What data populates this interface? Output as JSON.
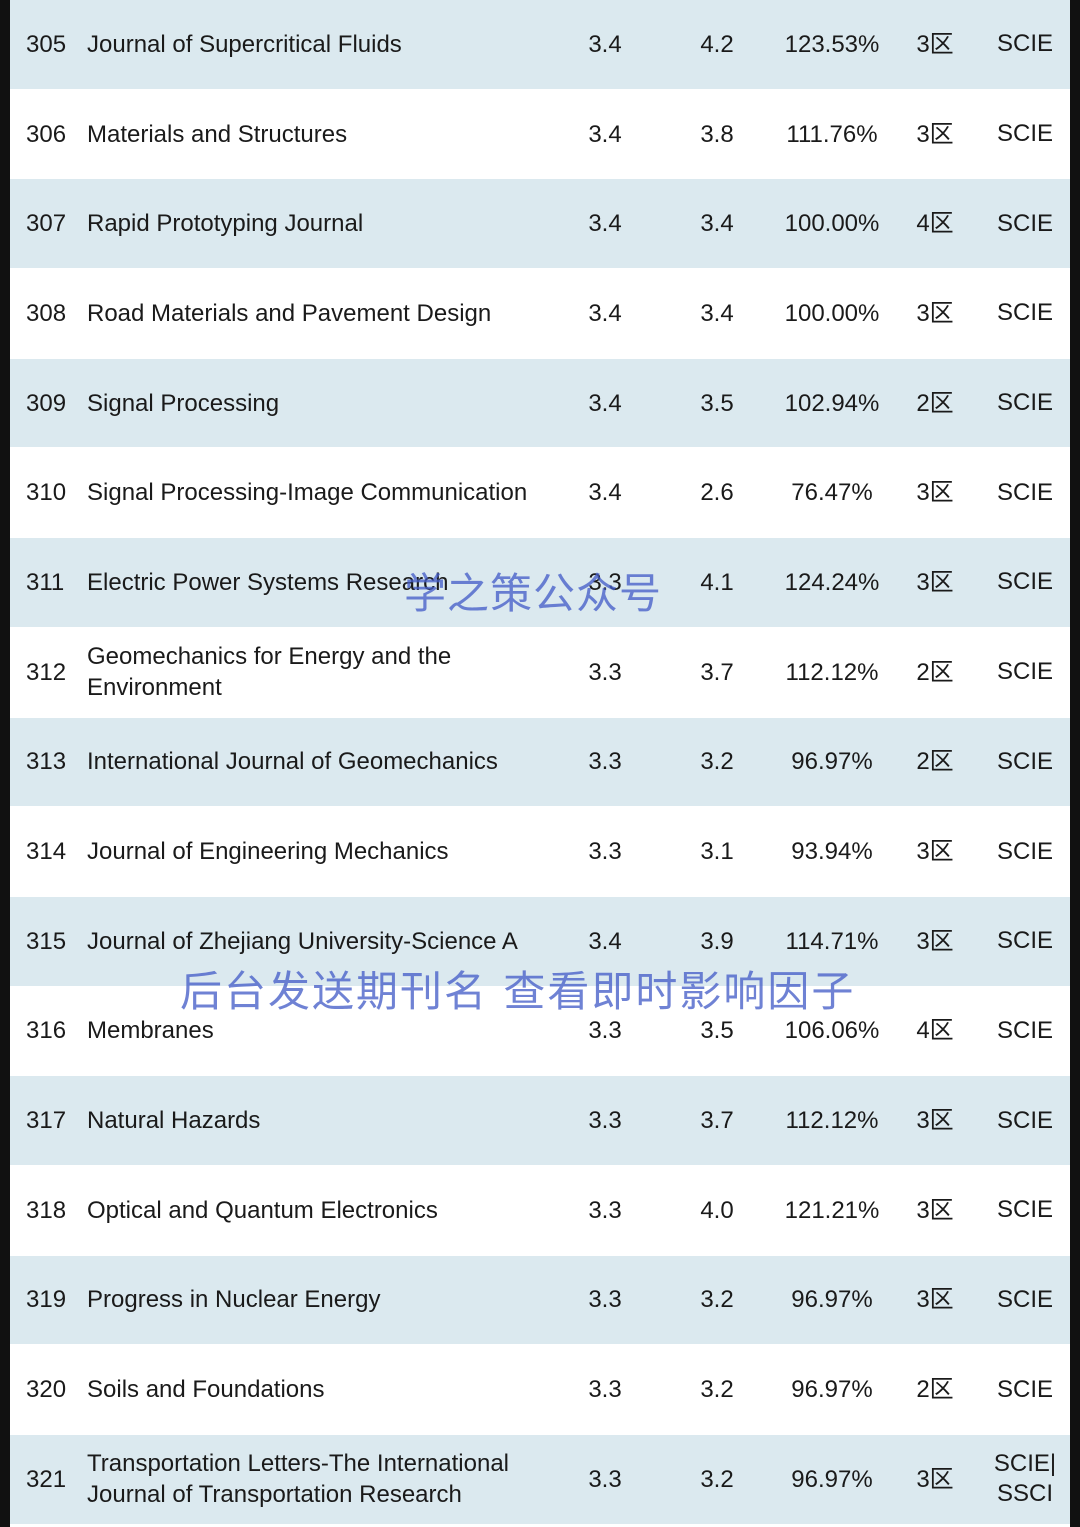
{
  "rows": [
    {
      "rank": "305",
      "name": "Journal of Supercritical Fluids",
      "if1": "3.4",
      "if2": "4.2",
      "ratio": "123.53%",
      "zone": "3区",
      "index": "SCIE"
    },
    {
      "rank": "306",
      "name": "Materials and Structures",
      "if1": "3.4",
      "if2": "3.8",
      "ratio": "111.76%",
      "zone": "3区",
      "index": "SCIE"
    },
    {
      "rank": "307",
      "name": "Rapid Prototyping Journal",
      "if1": "3.4",
      "if2": "3.4",
      "ratio": "100.00%",
      "zone": "4区",
      "index": "SCIE"
    },
    {
      "rank": "308",
      "name": "Road Materials and Pavement Design",
      "if1": "3.4",
      "if2": "3.4",
      "ratio": "100.00%",
      "zone": "3区",
      "index": "SCIE"
    },
    {
      "rank": "309",
      "name": "Signal Processing",
      "if1": "3.4",
      "if2": "3.5",
      "ratio": "102.94%",
      "zone": "2区",
      "index": "SCIE"
    },
    {
      "rank": "310",
      "name": "Signal Processing-Image Communication",
      "if1": "3.4",
      "if2": "2.6",
      "ratio": "76.47%",
      "zone": "3区",
      "index": "SCIE"
    },
    {
      "rank": "311",
      "name": "Electric Power Systems Research",
      "if1": "3.3",
      "if2": "4.1",
      "ratio": "124.24%",
      "zone": "3区",
      "index": "SCIE"
    },
    {
      "rank": "312",
      "name": "Geomechanics for Energy and the Environment",
      "if1": "3.3",
      "if2": "3.7",
      "ratio": "112.12%",
      "zone": "2区",
      "index": "SCIE"
    },
    {
      "rank": "313",
      "name": "International Journal of Geomechanics",
      "if1": "3.3",
      "if2": "3.2",
      "ratio": "96.97%",
      "zone": "2区",
      "index": "SCIE"
    },
    {
      "rank": "314",
      "name": "Journal of Engineering Mechanics",
      "if1": "3.3",
      "if2": "3.1",
      "ratio": "93.94%",
      "zone": "3区",
      "index": "SCIE"
    },
    {
      "rank": "315",
      "name": "Journal of Zhejiang University-Science A",
      "if1": "3.4",
      "if2": "3.9",
      "ratio": "114.71%",
      "zone": "3区",
      "index": "SCIE"
    },
    {
      "rank": "316",
      "name": "Membranes",
      "if1": "3.3",
      "if2": "3.5",
      "ratio": "106.06%",
      "zone": "4区",
      "index": "SCIE"
    },
    {
      "rank": "317",
      "name": "Natural Hazards",
      "if1": "3.3",
      "if2": "3.7",
      "ratio": "112.12%",
      "zone": "3区",
      "index": "SCIE"
    },
    {
      "rank": "318",
      "name": "Optical and Quantum Electronics",
      "if1": "3.3",
      "if2": "4.0",
      "ratio": "121.21%",
      "zone": "3区",
      "index": "SCIE"
    },
    {
      "rank": "319",
      "name": "Progress in Nuclear Energy",
      "if1": "3.3",
      "if2": "3.2",
      "ratio": "96.97%",
      "zone": "3区",
      "index": "SCIE"
    },
    {
      "rank": "320",
      "name": "Soils and Foundations",
      "if1": "3.3",
      "if2": "3.2",
      "ratio": "96.97%",
      "zone": "2区",
      "index": "SCIE"
    },
    {
      "rank": "321",
      "name": "Transportation Letters-The International Journal of Transportation Research",
      "if1": "3.3",
      "if2": "3.2",
      "ratio": "96.97%",
      "zone": "3区",
      "index": "SCIE| SSCI"
    }
  ],
  "watermarks": {
    "account": "学之策公众号",
    "notice": "后台发送期刊名 查看即时影响因子"
  },
  "colors": {
    "shaded_row": "#dbe9ef",
    "plain_row": "#ffffff",
    "watermark": "#4a5fc8"
  }
}
